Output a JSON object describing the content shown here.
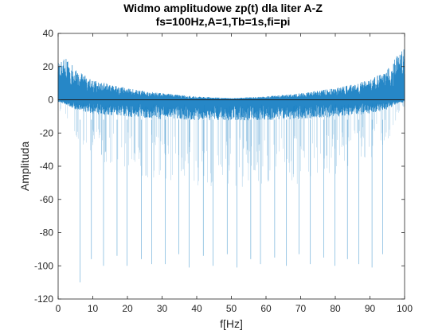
{
  "chart_data": {
    "type": "line",
    "title": "Widmo amplitudowe zp(t) dla liter A-Z",
    "subtitle": "fs=100Hz,A=1,Tb=1s,fi=pi",
    "xlabel": "f[Hz]",
    "ylabel": "Amplituda",
    "xlim": [
      0,
      100
    ],
    "ylim": [
      -120,
      40
    ],
    "xticks": [
      0,
      10,
      20,
      30,
      40,
      50,
      60,
      70,
      80,
      90,
      100
    ],
    "yticks": [
      -120,
      -100,
      -80,
      -60,
      -40,
      -20,
      0,
      20,
      40
    ],
    "grid": false,
    "legend": "none",
    "series_color": "#0072BD",
    "envelope": {
      "description_points_f": [
        0,
        2,
        5,
        10,
        20,
        30,
        40,
        50,
        60,
        70,
        80,
        90,
        95,
        98,
        100
      ],
      "upper_dB": [
        22,
        28,
        18,
        12,
        7,
        4,
        2,
        1,
        2,
        4,
        7,
        12,
        18,
        28,
        33
      ],
      "lower_dB": [
        -2,
        -4,
        -9,
        -13,
        -16,
        -18,
        -19,
        -19,
        -19,
        -18,
        -16,
        -13,
        -9,
        -4,
        -2
      ]
    },
    "deep_nulls": [
      {
        "f": 6.3,
        "dB": -110
      },
      {
        "f": 9.6,
        "dB": -96
      },
      {
        "f": 13.1,
        "dB": -100
      },
      {
        "f": 17.0,
        "dB": -94
      },
      {
        "f": 19.9,
        "dB": -100
      },
      {
        "f": 24.0,
        "dB": -96
      },
      {
        "f": 27.0,
        "dB": -99
      },
      {
        "f": 30.9,
        "dB": -99
      },
      {
        "f": 34.8,
        "dB": -93
      },
      {
        "f": 37.8,
        "dB": -101
      },
      {
        "f": 41.9,
        "dB": -94
      },
      {
        "f": 44.7,
        "dB": -100
      },
      {
        "f": 48.8,
        "dB": -93
      },
      {
        "f": 51.6,
        "dB": -101
      },
      {
        "f": 55.6,
        "dB": -96
      },
      {
        "f": 58.4,
        "dB": -99
      },
      {
        "f": 62.5,
        "dB": -95
      },
      {
        "f": 65.9,
        "dB": -100
      },
      {
        "f": 69.5,
        "dB": -93
      },
      {
        "f": 72.8,
        "dB": -99
      },
      {
        "f": 76.7,
        "dB": -95
      },
      {
        "f": 79.9,
        "dB": -100
      },
      {
        "f": 83.5,
        "dB": -96
      },
      {
        "f": 86.8,
        "dB": -99
      },
      {
        "f": 90.6,
        "dB": -101
      },
      {
        "f": 93.7,
        "dB": -93
      }
    ]
  }
}
